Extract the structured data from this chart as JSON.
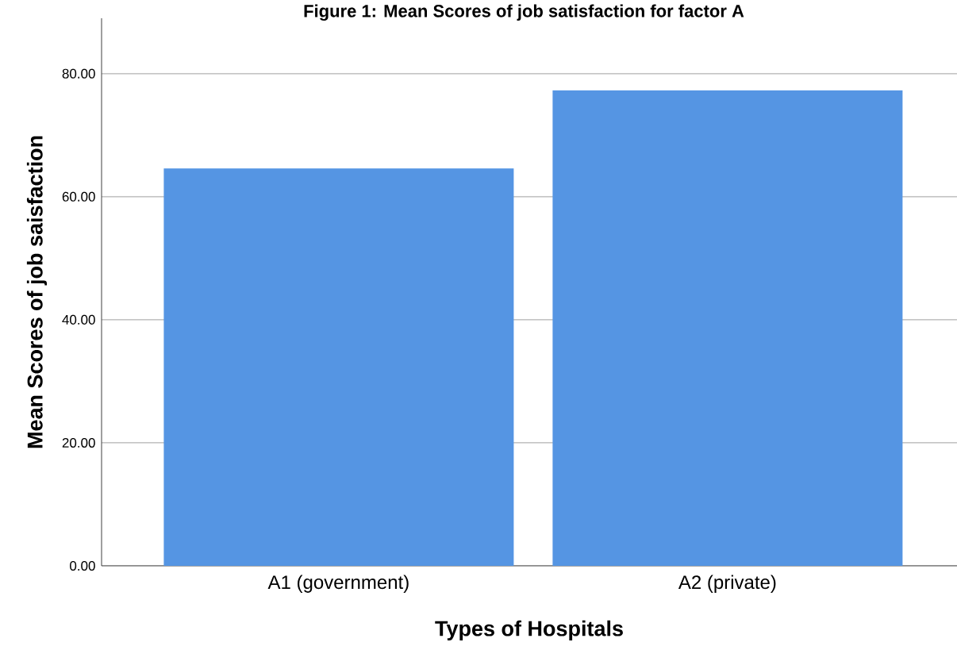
{
  "chart_data": {
    "type": "bar",
    "title": "Figure 1: Mean Scores of job satisfaction for factor A",
    "xlabel": "Types of Hospitals",
    "ylabel": "Mean Scores of job saisfaction",
    "categories": [
      "A1 (government)",
      "A2 (private)"
    ],
    "values": [
      64.6,
      77.3
    ],
    "color": "#5595e3",
    "ylim": [
      0,
      89
    ],
    "yticks": [
      {
        "value": 0,
        "label": "0.00"
      },
      {
        "value": 20,
        "label": "20.00"
      },
      {
        "value": 40,
        "label": "40.00"
      },
      {
        "value": 60,
        "label": "60.00"
      },
      {
        "value": 80,
        "label": "80.00"
      }
    ],
    "grid": "y"
  }
}
